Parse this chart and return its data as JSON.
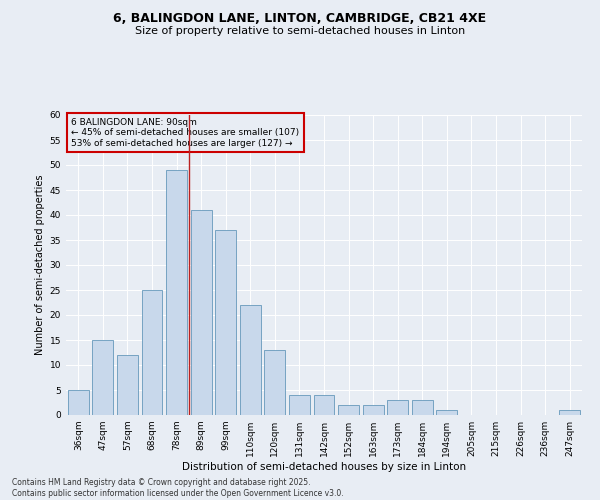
{
  "title1": "6, BALINGDON LANE, LINTON, CAMBRIDGE, CB21 4XE",
  "title2": "Size of property relative to semi-detached houses in Linton",
  "xlabel": "Distribution of semi-detached houses by size in Linton",
  "ylabel": "Number of semi-detached properties",
  "footer1": "Contains HM Land Registry data © Crown copyright and database right 2025.",
  "footer2": "Contains public sector information licensed under the Open Government Licence v3.0.",
  "annotation_title": "6 BALINGDON LANE: 90sqm",
  "annotation_line1": "← 45% of semi-detached houses are smaller (107)",
  "annotation_line2": "53% of semi-detached houses are larger (127) →",
  "bar_labels": [
    "36sqm",
    "47sqm",
    "57sqm",
    "68sqm",
    "78sqm",
    "89sqm",
    "99sqm",
    "110sqm",
    "120sqm",
    "131sqm",
    "142sqm",
    "152sqm",
    "163sqm",
    "173sqm",
    "184sqm",
    "194sqm",
    "205sqm",
    "215sqm",
    "226sqm",
    "236sqm",
    "247sqm"
  ],
  "bar_values": [
    5,
    15,
    12,
    25,
    49,
    41,
    37,
    22,
    13,
    4,
    4,
    2,
    2,
    3,
    3,
    1,
    0,
    0,
    0,
    0,
    1
  ],
  "bar_color": "#c8d8eb",
  "bar_edge_color": "#6699bb",
  "vline_index": 4.5,
  "ylim": [
    0,
    60
  ],
  "yticks": [
    0,
    5,
    10,
    15,
    20,
    25,
    30,
    35,
    40,
    45,
    50,
    55,
    60
  ],
  "bg_color": "#e8edf4",
  "annotation_box_color": "#cc0000",
  "vline_color": "#bb2222",
  "grid_color": "#ffffff",
  "title1_fontsize": 9,
  "title2_fontsize": 8,
  "xlabel_fontsize": 7.5,
  "ylabel_fontsize": 7,
  "tick_fontsize": 6.5,
  "ann_fontsize": 6.5,
  "footer_fontsize": 5.5
}
